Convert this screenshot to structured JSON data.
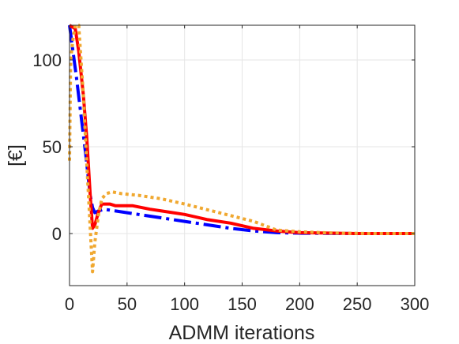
{
  "chart_data": {
    "type": "line",
    "title": "",
    "xlabel": "ADMM iterations",
    "ylabel": "[€]",
    "xlim": [
      0,
      300
    ],
    "ylim": [
      -30,
      120
    ],
    "xticks": [
      0,
      50,
      100,
      150,
      200,
      250,
      300
    ],
    "yticks": [
      0,
      50,
      100
    ],
    "grid": true,
    "legend": "none",
    "series": [
      {
        "color": "#0000ff",
        "style": "dash-dot",
        "x": [
          0,
          3,
          6,
          10,
          14,
          18,
          20,
          22,
          25,
          30,
          40,
          60,
          80,
          100,
          120,
          140,
          160,
          180,
          200,
          250,
          300
        ],
        "y": [
          120,
          105,
          90,
          68,
          46,
          22,
          15,
          12,
          13,
          14,
          13,
          11,
          9,
          7,
          5,
          3,
          1.5,
          0.5,
          0.2,
          0,
          0
        ]
      },
      {
        "color": "#ff0000",
        "style": "solid",
        "x": [
          0,
          5,
          8,
          12,
          15,
          18,
          20,
          22,
          25,
          28,
          35,
          40,
          55,
          70,
          80,
          100,
          120,
          140,
          160,
          180,
          200,
          250,
          300
        ],
        "y": [
          120,
          118,
          105,
          80,
          55,
          22,
          3,
          5,
          12,
          17,
          17,
          16,
          16,
          14,
          13,
          11,
          8,
          6,
          3,
          1.5,
          0.5,
          0,
          0
        ]
      },
      {
        "color": "#f0a830",
        "style": "dotted",
        "x": [
          0,
          1,
          3,
          5,
          8,
          12,
          15,
          18,
          20,
          22,
          25,
          28,
          32,
          37,
          45,
          60,
          80,
          100,
          130,
          160,
          180,
          200,
          230,
          260,
          300
        ],
        "y": [
          42,
          100,
          112,
          120,
          120,
          80,
          40,
          3,
          -22,
          -5,
          10,
          20,
          23,
          24,
          23,
          22,
          20,
          17,
          12,
          7,
          2,
          1,
          0.3,
          0,
          0
        ]
      }
    ]
  }
}
